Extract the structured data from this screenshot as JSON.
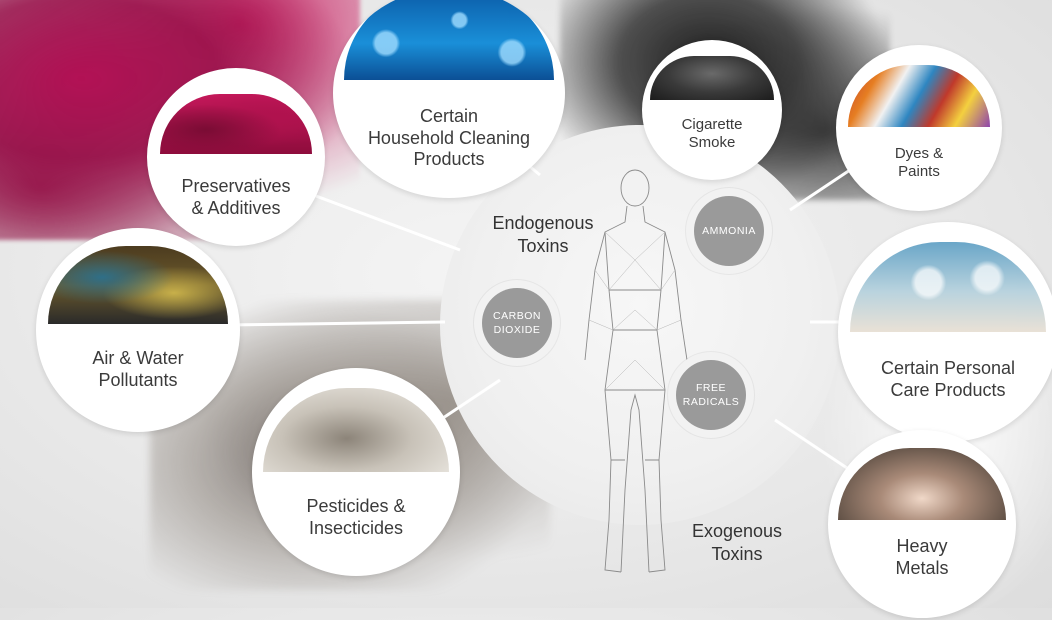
{
  "categories": {
    "additives": "Preservatives\n& Additives",
    "cleaning": "Certain\nHousehold Cleaning\nProducts",
    "smoke": "Cigarette\nSmoke",
    "dyes": "Dyes &\nPaints",
    "pollutants": "Air & Water\nPollutants",
    "personal_care": "Certain Personal\nCare Products",
    "pesticides": "Pesticides &\nInsecticides",
    "metals": "Heavy\nMetals"
  },
  "center": {
    "endogenous": "Endogenous\nToxins",
    "exogenous": "Exogenous\nToxins"
  },
  "chemicals": {
    "ammonia": "AMMONIA",
    "carbon_dioxide": "CARBON\nDIOXIDE",
    "free_radicals": "FREE\nRADICALS"
  },
  "colors": {
    "label_text": "#3b3b3b",
    "chem_badge": "#9a9a9a",
    "magenta_smoke": "#b00a50"
  }
}
